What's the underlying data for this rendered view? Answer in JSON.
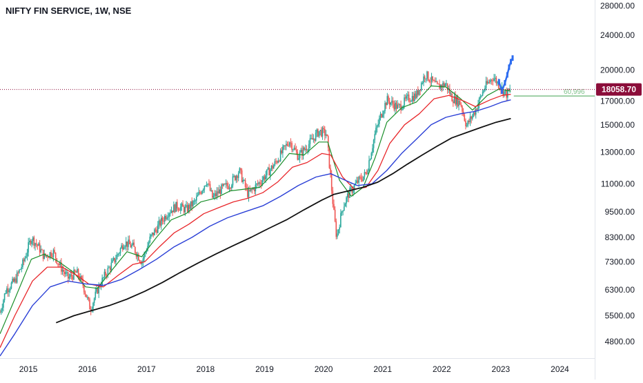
{
  "header": {
    "title": "NIFTY FIN SERVICE, 1W, NSE"
  },
  "chart_data": {
    "type": "line",
    "scale": "log",
    "ylim": [
      4400,
      28900
    ],
    "xlim": [
      2014.55,
      2024.62
    ],
    "y_ticks": [
      "28000.00",
      "24000.00",
      "20000.00",
      "17000.00",
      "15000.00",
      "13000.00",
      "11000.00",
      "9500.00",
      "8300.00",
      "7300.00",
      "6300.00",
      "5500.00",
      "4800.00"
    ],
    "x_ticks": [
      "2015",
      "2016",
      "2017",
      "2018",
      "2019",
      "2020",
      "2021",
      "2022",
      "2023",
      "2024"
    ],
    "last_price": 18058.7,
    "last_price_label": "18058.70",
    "pattern_label": "60,996",
    "pattern_level": 17450,
    "colors": {
      "up": "#26a69a",
      "down": "#ef5350",
      "ma_green": "#1a8f2a",
      "ma_red": "#e8262a",
      "ma_blue": "#2a3fd6",
      "ma_black": "#111111",
      "projection": "#2d6cf0",
      "price_badge": "#8b0d3a",
      "label_green": "#7fc18a"
    },
    "price_path": [
      [
        2014.55,
        5600
      ],
      [
        2014.65,
        6300
      ],
      [
        2014.8,
        6600
      ],
      [
        2014.95,
        7300
      ],
      [
        2015.08,
        8300
      ],
      [
        2015.2,
        7900
      ],
      [
        2015.3,
        7500
      ],
      [
        2015.45,
        7700
      ],
      [
        2015.55,
        7200
      ],
      [
        2015.7,
        6700
      ],
      [
        2015.85,
        6900
      ],
      [
        2015.95,
        6500
      ],
      [
        2016.08,
        5700
      ],
      [
        2016.2,
        6300
      ],
      [
        2016.35,
        6900
      ],
      [
        2016.5,
        7400
      ],
      [
        2016.65,
        8100
      ],
      [
        2016.8,
        7900
      ],
      [
        2016.95,
        7300
      ],
      [
        2017.1,
        8300
      ],
      [
        2017.25,
        8900
      ],
      [
        2017.4,
        9500
      ],
      [
        2017.55,
        9800
      ],
      [
        2017.7,
        9600
      ],
      [
        2017.85,
        10000
      ],
      [
        2017.95,
        10600
      ],
      [
        2018.05,
        11200
      ],
      [
        2018.15,
        10200
      ],
      [
        2018.3,
        10700
      ],
      [
        2018.45,
        11000
      ],
      [
        2018.6,
        11800
      ],
      [
        2018.75,
        10400
      ],
      [
        2018.95,
        11100
      ],
      [
        2019.2,
        12200
      ],
      [
        2019.45,
        13800
      ],
      [
        2019.6,
        12700
      ],
      [
        2019.75,
        13400
      ],
      [
        2019.95,
        14500
      ],
      [
        2020.08,
        14300
      ],
      [
        2020.2,
        9500
      ],
      [
        2020.25,
        8300
      ],
      [
        2020.35,
        9700
      ],
      [
        2020.45,
        10400
      ],
      [
        2020.6,
        11100
      ],
      [
        2020.75,
        11600
      ],
      [
        2020.9,
        14300
      ],
      [
        2021.0,
        15800
      ],
      [
        2021.1,
        17100
      ],
      [
        2021.3,
        16400
      ],
      [
        2021.45,
        17200
      ],
      [
        2021.6,
        17500
      ],
      [
        2021.75,
        19600
      ],
      [
        2021.95,
        18300
      ],
      [
        2022.1,
        18600
      ],
      [
        2022.2,
        17300
      ],
      [
        2022.35,
        16800
      ],
      [
        2022.45,
        14900
      ],
      [
        2022.6,
        16200
      ],
      [
        2022.75,
        18200
      ],
      [
        2022.9,
        19300
      ],
      [
        2023.0,
        18500
      ],
      [
        2023.12,
        17600
      ],
      [
        2023.2,
        18060
      ]
    ],
    "series": [
      {
        "values": [
          [
            2014.55,
            5000
          ],
          [
            2014.8,
            6000
          ],
          [
            2015.08,
            7400
          ],
          [
            2015.3,
            7600
          ],
          [
            2015.55,
            7300
          ],
          [
            2015.8,
            6900
          ],
          [
            2016.0,
            6400
          ],
          [
            2016.2,
            6350
          ],
          [
            2016.45,
            7000
          ],
          [
            2016.7,
            7700
          ],
          [
            2016.95,
            7500
          ],
          [
            2017.2,
            8300
          ],
          [
            2017.45,
            9100
          ],
          [
            2017.7,
            9400
          ],
          [
            2017.95,
            10000
          ],
          [
            2018.2,
            10200
          ],
          [
            2018.45,
            10600
          ],
          [
            2018.7,
            10700
          ],
          [
            2018.95,
            10800
          ],
          [
            2019.2,
            11700
          ],
          [
            2019.45,
            12900
          ],
          [
            2019.7,
            12800
          ],
          [
            2019.95,
            13700
          ],
          [
            2020.1,
            13700
          ],
          [
            2020.3,
            11200
          ],
          [
            2020.5,
            10300
          ],
          [
            2020.7,
            10800
          ],
          [
            2020.9,
            12600
          ],
          [
            2021.1,
            15200
          ],
          [
            2021.35,
            16400
          ],
          [
            2021.6,
            16900
          ],
          [
            2021.85,
            18400
          ],
          [
            2022.1,
            18300
          ],
          [
            2022.35,
            17200
          ],
          [
            2022.55,
            16200
          ],
          [
            2022.8,
            17500
          ],
          [
            2023.0,
            18100
          ],
          [
            2023.2,
            17900
          ]
        ]
      },
      {
        "values": [
          [
            2014.55,
            4650
          ],
          [
            2014.8,
            5500
          ],
          [
            2015.1,
            6600
          ],
          [
            2015.35,
            7100
          ],
          [
            2015.6,
            7100
          ],
          [
            2015.85,
            6800
          ],
          [
            2016.05,
            6500
          ],
          [
            2016.3,
            6400
          ],
          [
            2016.55,
            6800
          ],
          [
            2016.8,
            7200
          ],
          [
            2017.0,
            7300
          ],
          [
            2017.25,
            7900
          ],
          [
            2017.5,
            8500
          ],
          [
            2017.75,
            8900
          ],
          [
            2018.0,
            9400
          ],
          [
            2018.25,
            9700
          ],
          [
            2018.5,
            10000
          ],
          [
            2018.75,
            10200
          ],
          [
            2019.0,
            10500
          ],
          [
            2019.25,
            11100
          ],
          [
            2019.5,
            12000
          ],
          [
            2019.75,
            12300
          ],
          [
            2020.0,
            12900
          ],
          [
            2020.15,
            12800
          ],
          [
            2020.35,
            11400
          ],
          [
            2020.55,
            10700
          ],
          [
            2020.75,
            10800
          ],
          [
            2020.95,
            11800
          ],
          [
            2021.15,
            13600
          ],
          [
            2021.4,
            15000
          ],
          [
            2021.65,
            15900
          ],
          [
            2021.9,
            17200
          ],
          [
            2022.15,
            17500
          ],
          [
            2022.4,
            17000
          ],
          [
            2022.6,
            16500
          ],
          [
            2022.85,
            17100
          ],
          [
            2023.05,
            17500
          ],
          [
            2023.2,
            17600
          ]
        ]
      },
      {
        "values": [
          [
            2014.55,
            4450
          ],
          [
            2014.8,
            5000
          ],
          [
            2015.1,
            5800
          ],
          [
            2015.4,
            6400
          ],
          [
            2015.7,
            6600
          ],
          [
            2016.0,
            6500
          ],
          [
            2016.3,
            6450
          ],
          [
            2016.6,
            6650
          ],
          [
            2016.9,
            7000
          ],
          [
            2017.2,
            7400
          ],
          [
            2017.5,
            7900
          ],
          [
            2017.8,
            8300
          ],
          [
            2018.1,
            8800
          ],
          [
            2018.4,
            9200
          ],
          [
            2018.7,
            9500
          ],
          [
            2019.0,
            9800
          ],
          [
            2019.3,
            10300
          ],
          [
            2019.6,
            10900
          ],
          [
            2019.9,
            11400
          ],
          [
            2020.15,
            11600
          ],
          [
            2020.4,
            11200
          ],
          [
            2020.6,
            10900
          ],
          [
            2020.85,
            11000
          ],
          [
            2021.1,
            11800
          ],
          [
            2021.35,
            12900
          ],
          [
            2021.6,
            13900
          ],
          [
            2021.85,
            15000
          ],
          [
            2022.1,
            15600
          ],
          [
            2022.35,
            15900
          ],
          [
            2022.6,
            16100
          ],
          [
            2022.85,
            16500
          ],
          [
            2023.05,
            16900
          ],
          [
            2023.2,
            17100
          ]
        ]
      },
      {
        "values": [
          [
            2015.5,
            5300
          ],
          [
            2015.8,
            5500
          ],
          [
            2016.1,
            5650
          ],
          [
            2016.4,
            5800
          ],
          [
            2016.7,
            6000
          ],
          [
            2017.0,
            6250
          ],
          [
            2017.3,
            6550
          ],
          [
            2017.6,
            6900
          ],
          [
            2017.9,
            7250
          ],
          [
            2018.2,
            7600
          ],
          [
            2018.5,
            7950
          ],
          [
            2018.8,
            8300
          ],
          [
            2019.1,
            8700
          ],
          [
            2019.4,
            9100
          ],
          [
            2019.7,
            9600
          ],
          [
            2020.0,
            10100
          ],
          [
            2020.2,
            10400
          ],
          [
            2020.45,
            10600
          ],
          [
            2020.7,
            10800
          ],
          [
            2020.95,
            11100
          ],
          [
            2021.2,
            11600
          ],
          [
            2021.45,
            12200
          ],
          [
            2021.7,
            12800
          ],
          [
            2021.95,
            13400
          ],
          [
            2022.2,
            14000
          ],
          [
            2022.45,
            14400
          ],
          [
            2022.7,
            14800
          ],
          [
            2022.95,
            15200
          ],
          [
            2023.2,
            15500
          ]
        ]
      }
    ],
    "projection_points": [
      [
        2023.0,
        18800
      ],
      [
        2023.05,
        17900
      ],
      [
        2023.1,
        18700
      ],
      [
        2023.14,
        19500
      ],
      [
        2023.17,
        20300
      ],
      [
        2023.2,
        20900
      ],
      [
        2023.23,
        21300
      ]
    ]
  }
}
